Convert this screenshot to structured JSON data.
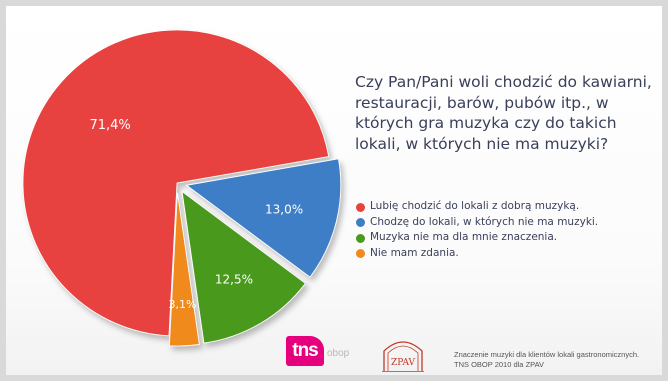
{
  "question": "Czy Pan/Pani woli chodzić do kawiarni, restauracji, barów, pubów itp., w których gra muzyka czy do takich lokali, w których nie ma muzyki?",
  "colors": {
    "red": "#e8423f",
    "blue": "#3d7ec6",
    "green": "#4a9a1f",
    "orange": "#f08a1c",
    "text": "#3a3f5a",
    "tns_pink": "#e6007e",
    "zpav_red": "#c0392b"
  },
  "chart_data": {
    "type": "pie",
    "slices": [
      {
        "label": "Lubię chodzić do lokali z dobrą muzyką.",
        "value": 71.4,
        "display": "71,4%",
        "color": "#e8423f",
        "exploded": false
      },
      {
        "label": "Chodzę do lokali, w których nie ma muzyki.",
        "value": 13.0,
        "display": "13,0%",
        "color": "#3d7ec6",
        "exploded": true
      },
      {
        "label": "Muzyka nie ma dla mnie znaczenia.",
        "value": 12.5,
        "display": "12,5%",
        "color": "#4a9a1f",
        "exploded": true
      },
      {
        "label": "Nie mam zdania.",
        "value": 3.1,
        "display": "3,1%",
        "color": "#f08a1c",
        "exploded": true
      }
    ],
    "legend_position": "right"
  },
  "footer": {
    "tns_logo_text": "tns",
    "tns_logo_sub": "obop",
    "zpav_logo_text": "ZPAV",
    "source_line1": "Znaczenie muzyki dla klientów lokali gastronomicznych.",
    "source_line2": "TNS OBOP 2010 dla ZPAV"
  }
}
